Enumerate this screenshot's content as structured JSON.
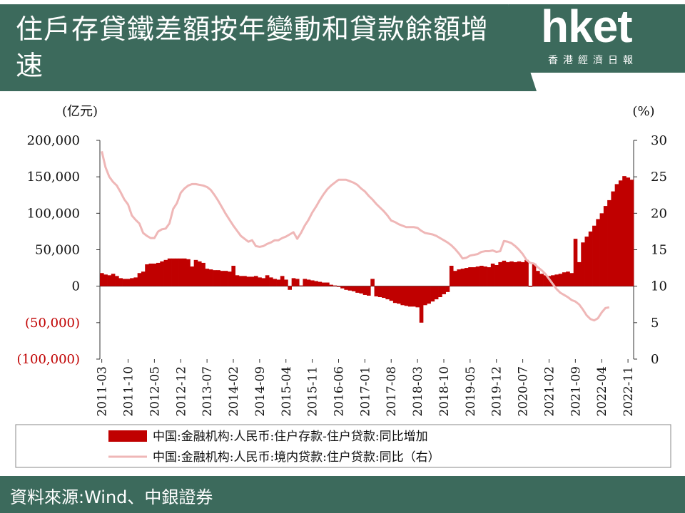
{
  "header": {
    "title": "住戶存貸鐵差額按年變動和貸款餘額增速",
    "logo_text": "hket",
    "logo_subtitle": "香港經濟日報"
  },
  "footer": {
    "source": "資料來源:Wind、中銀證券"
  },
  "colors": {
    "panel": "#3c6a5c",
    "bar": "#c00000",
    "line": "#efb7b7",
    "negative_label": "#c00000"
  },
  "chart_data": {
    "type": "bar",
    "left_unit": "(亿元)",
    "right_unit": "(%)",
    "y_left_ticks": [
      "200,000",
      "150,000",
      "100,000",
      "50,000",
      "0",
      "(50,000)",
      "(100,000)"
    ],
    "y_right_ticks": [
      "30",
      "25",
      "20",
      "15",
      "10",
      "5",
      "0"
    ],
    "ylim_left": [
      -100000,
      200000
    ],
    "ylim_right": [
      0,
      30
    ],
    "x_ticks": [
      "2011-03",
      "2011-10",
      "2012-05",
      "2012-12",
      "2013-07",
      "2014-02",
      "2014-09",
      "2015-04",
      "2015-11",
      "2016-06",
      "2017-01",
      "2017-08",
      "2018-03",
      "2018-10",
      "2019-05",
      "2019-12",
      "2020-07",
      "2021-02",
      "2021-09",
      "2022-04",
      "2022-11"
    ],
    "start_month": "2011-03",
    "grid": false,
    "legend_position": "bottom",
    "series": [
      {
        "name": "中国:金融机构:人民币:住户存款-住户贷款:同比增加",
        "type": "bar",
        "axis": "left",
        "values": [
          18000,
          16000,
          15000,
          17000,
          14000,
          11000,
          10000,
          10000,
          11000,
          12000,
          18000,
          20000,
          30000,
          31000,
          31000,
          32000,
          34000,
          36000,
          38000,
          38000,
          38000,
          38000,
          38000,
          37000,
          27000,
          36000,
          34000,
          32000,
          24000,
          23000,
          22000,
          22000,
          21000,
          21000,
          20000,
          28000,
          15000,
          14000,
          14000,
          13000,
          13000,
          14000,
          12000,
          11000,
          15000,
          12000,
          10000,
          9000,
          14000,
          9000,
          -5000,
          11000,
          10000,
          1000,
          10000,
          9000,
          8000,
          7000,
          6000,
          5000,
          5000,
          2000,
          1000,
          -1000,
          -3000,
          -5000,
          -6000,
          -7000,
          -9000,
          -10000,
          -12000,
          -13000,
          10000,
          -14000,
          -15000,
          -16000,
          -18000,
          -20000,
          -23000,
          -24000,
          -26000,
          -27000,
          -28000,
          -28000,
          -29000,
          -50000,
          -26000,
          -24000,
          -21000,
          -18000,
          -15000,
          -11000,
          -8000,
          28000,
          21000,
          23000,
          24000,
          25000,
          26000,
          26000,
          27000,
          28000,
          27000,
          26000,
          31000,
          29000,
          33000,
          35000,
          33000,
          34000,
          33000,
          34000,
          33000,
          36000,
          -1000,
          31000,
          21000,
          17000,
          15000,
          14000,
          15000,
          16000,
          17000,
          19000,
          20000,
          18000,
          65000,
          33000,
          60000,
          68000,
          75000,
          83000,
          92000,
          100000,
          110000,
          118000,
          130000,
          140000,
          145000,
          151000,
          149000,
          146000
        ],
        "ylim": [
          -100000,
          200000
        ]
      },
      {
        "name": "中国:金融机构:人民币:境内贷款:住户贷款:同比（右）",
        "type": "line",
        "axis": "right",
        "values": [
          28.5,
          26.3,
          25.0,
          24.3,
          23.8,
          22.9,
          21.9,
          21.2,
          19.7,
          19.1,
          18.6,
          17.3,
          16.9,
          16.6,
          16.6,
          17.5,
          17.8,
          17.9,
          18.6,
          20.6,
          21.4,
          22.8,
          23.4,
          23.8,
          24.0,
          24.0,
          23.9,
          23.8,
          23.6,
          23.2,
          22.5,
          21.7,
          20.8,
          19.9,
          19.1,
          18.3,
          17.6,
          16.9,
          16.5,
          16.1,
          16.3,
          15.5,
          15.4,
          15.5,
          15.8,
          16.0,
          16.3,
          16.3,
          16.6,
          16.8,
          17.1,
          17.4,
          16.5,
          17.3,
          18.3,
          19.1,
          20.1,
          20.9,
          21.8,
          22.6,
          23.3,
          23.8,
          24.2,
          24.6,
          24.6,
          24.6,
          24.4,
          24.2,
          23.9,
          23.4,
          23.0,
          22.4,
          21.9,
          21.3,
          20.8,
          20.3,
          19.7,
          19.0,
          18.8,
          18.5,
          18.3,
          18.1,
          18.1,
          18.1,
          18.0,
          17.6,
          17.3,
          17.2,
          17.1,
          16.9,
          16.6,
          16.3,
          16.0,
          15.6,
          15.1,
          14.5,
          13.8,
          13.9,
          14.2,
          14.3,
          14.4,
          14.7,
          14.8,
          14.8,
          14.9,
          14.7,
          14.8,
          16.2,
          16.1,
          15.9,
          15.5,
          15.0,
          14.4,
          13.6,
          13.2,
          13.1,
          12.6,
          12.2,
          11.7,
          11.0,
          10.3,
          9.6,
          9.1,
          8.8,
          8.5,
          8.1,
          7.9,
          7.5,
          6.8,
          6.0,
          5.5,
          5.3,
          5.6,
          6.4,
          7.0,
          7.1
        ]
      }
    ]
  }
}
